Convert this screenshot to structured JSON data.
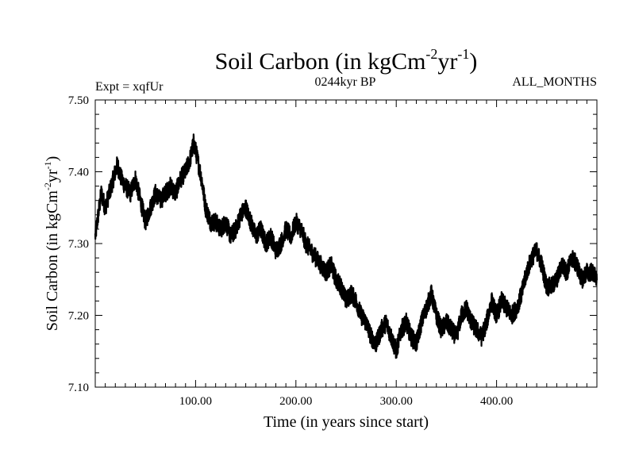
{
  "chart_data": {
    "type": "line",
    "title_main": "Soil Carbon (in kgCm",
    "title_sup1": "-2",
    "title_mid": "yr",
    "title_sup2": "-1",
    "title_end": ")",
    "subtitle": "0244kyr BP",
    "left_label": "Expt = xqfUr",
    "right_label": "ALL_MONTHS",
    "xlabel": "Time (in years since start)",
    "ylabel_main": "Soil Carbon (in kgCm",
    "ylabel_sup1": "-2",
    "ylabel_mid": "yr",
    "ylabel_sup2": "-1",
    "ylabel_end": ")",
    "xlim": [
      0,
      500
    ],
    "ylim": [
      7.1,
      7.5
    ],
    "xticks": [
      100,
      200,
      300,
      400
    ],
    "xtick_labels": [
      "100.00",
      "200.00",
      "300.00",
      "400.00"
    ],
    "yticks": [
      7.1,
      7.2,
      7.3,
      7.4,
      7.5
    ],
    "ytick_labels": [
      "7.10",
      "7.20",
      "7.30",
      "7.40",
      "7.50"
    ],
    "line_color": "#000000",
    "series": [
      {
        "x": [
          0,
          3,
          6,
          10,
          14,
          18,
          22,
          26,
          30,
          35,
          40,
          45,
          50,
          55,
          60,
          65,
          70,
          75,
          80,
          85,
          90,
          95,
          98,
          100,
          103,
          106,
          110,
          115,
          120,
          125,
          130,
          135,
          140,
          145,
          150,
          155,
          160,
          165,
          170,
          175,
          180,
          185,
          190,
          195,
          200,
          205,
          210,
          215,
          220,
          225,
          230,
          235,
          240,
          245,
          250,
          255,
          260,
          265,
          270,
          275,
          280,
          285,
          290,
          295,
          300,
          305,
          310,
          315,
          320,
          325,
          330,
          335,
          340,
          345,
          350,
          355,
          360,
          365,
          370,
          375,
          380,
          385,
          390,
          395,
          400,
          405,
          410,
          415,
          420,
          425,
          430,
          435,
          440,
          445,
          450,
          455,
          460,
          465,
          470,
          475,
          480,
          485,
          490,
          495,
          500
        ],
        "values": [
          7.31,
          7.34,
          7.37,
          7.35,
          7.37,
          7.39,
          7.41,
          7.39,
          7.38,
          7.37,
          7.39,
          7.36,
          7.33,
          7.35,
          7.37,
          7.36,
          7.37,
          7.38,
          7.37,
          7.39,
          7.4,
          7.42,
          7.44,
          7.43,
          7.41,
          7.39,
          7.35,
          7.33,
          7.33,
          7.32,
          7.33,
          7.31,
          7.32,
          7.34,
          7.35,
          7.33,
          7.31,
          7.32,
          7.3,
          7.31,
          7.29,
          7.3,
          7.32,
          7.31,
          7.33,
          7.32,
          7.3,
          7.29,
          7.28,
          7.27,
          7.26,
          7.27,
          7.25,
          7.24,
          7.22,
          7.23,
          7.22,
          7.2,
          7.19,
          7.17,
          7.16,
          7.18,
          7.19,
          7.17,
          7.15,
          7.18,
          7.19,
          7.17,
          7.16,
          7.19,
          7.21,
          7.23,
          7.2,
          7.18,
          7.19,
          7.18,
          7.17,
          7.2,
          7.21,
          7.19,
          7.18,
          7.17,
          7.19,
          7.22,
          7.2,
          7.22,
          7.21,
          7.2,
          7.21,
          7.23,
          7.26,
          7.28,
          7.29,
          7.27,
          7.24,
          7.24,
          7.25,
          7.27,
          7.26,
          7.28,
          7.27,
          7.25,
          7.26,
          7.26,
          7.25
        ]
      }
    ]
  }
}
